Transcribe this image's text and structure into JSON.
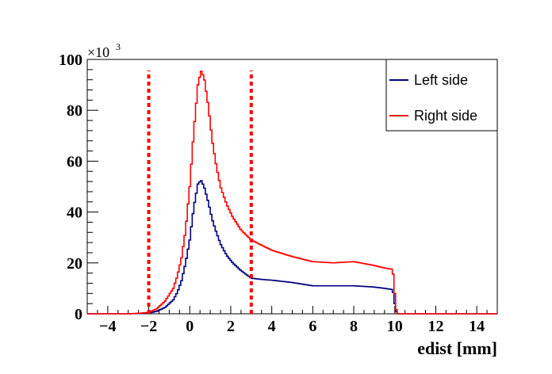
{
  "chart_data": {
    "type": "line",
    "title": "",
    "xlabel": "edist [mm]",
    "ylabel": "",
    "y_multiplier": {
      "base": "×10",
      "exponent": "3"
    },
    "xlim": [
      -5,
      15
    ],
    "ylim": [
      0,
      100
    ],
    "x_ticks": [
      -4,
      -2,
      0,
      2,
      4,
      6,
      8,
      10,
      12,
      14
    ],
    "y_ticks": [
      0,
      20,
      40,
      60,
      80,
      100
    ],
    "grid": false,
    "legend_position": "top-right",
    "cut_lines": {
      "color": "#ff0000",
      "style": "dotted",
      "x": [
        -2,
        3
      ]
    },
    "series": [
      {
        "name": "Left side",
        "color": "#000080",
        "x": [
          -5,
          -3,
          -2.5,
          -2,
          -1.6,
          -1.2,
          -0.8,
          -0.6,
          -0.4,
          -0.2,
          0,
          0.2,
          0.4,
          0.55,
          0.7,
          0.9,
          1.1,
          1.3,
          1.5,
          1.8,
          2.1,
          2.5,
          3,
          3.5,
          4,
          5,
          6,
          7,
          8,
          9,
          9.5,
          9.9,
          10,
          10.1,
          12,
          15
        ],
        "values": [
          0,
          0,
          0.1,
          0.3,
          1,
          2.5,
          5.5,
          8.5,
          13,
          20,
          29,
          42,
          51,
          52.5,
          50,
          44,
          37,
          32,
          27.5,
          23,
          20,
          17,
          14,
          13.5,
          13.2,
          12.3,
          11,
          11,
          11,
          10.5,
          10,
          9.5,
          4,
          0,
          0,
          0
        ]
      },
      {
        "name": "Right side",
        "color": "#ff0000",
        "x": [
          -5,
          -3,
          -2.5,
          -2,
          -1.6,
          -1.2,
          -0.8,
          -0.6,
          -0.4,
          -0.2,
          0,
          0.2,
          0.4,
          0.55,
          0.7,
          0.9,
          1.1,
          1.3,
          1.5,
          1.8,
          2.1,
          2.5,
          3,
          3.5,
          4,
          5,
          6,
          7,
          8,
          9,
          9.5,
          9.9,
          10,
          10.1,
          12,
          15
        ],
        "values": [
          0,
          0,
          0.2,
          0.5,
          2,
          5,
          10,
          15,
          22,
          33,
          50,
          72,
          90,
          95.5,
          93,
          82,
          68,
          58,
          50,
          43,
          38,
          33,
          29,
          27,
          25,
          22.5,
          20.5,
          20,
          20.5,
          19,
          18,
          17.5,
          8,
          0,
          0,
          0
        ]
      }
    ]
  }
}
